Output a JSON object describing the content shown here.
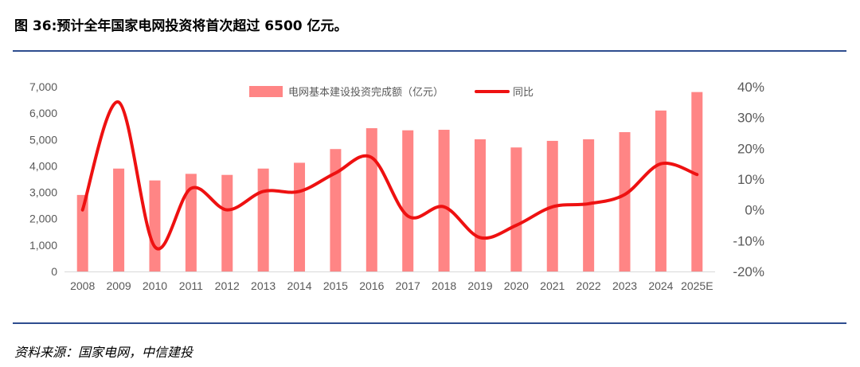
{
  "figure": {
    "title": "图 36:预计全年国家电网投资将首次超过 6500 亿元。",
    "source": "资料来源：国家电网，中信建投"
  },
  "chart_data": {
    "type": "bar",
    "categories": [
      "2008",
      "2009",
      "2010",
      "2011",
      "2012",
      "2013",
      "2014",
      "2015",
      "2016",
      "2017",
      "2018",
      "2019",
      "2020",
      "2021",
      "2022",
      "2023",
      "2024",
      "2025E"
    ],
    "series": [
      {
        "name": "电网基本建设投资完成额（亿元）",
        "type": "bar",
        "axis": "left",
        "color": "#ff8585",
        "values": [
          2900,
          3900,
          3450,
          3700,
          3660,
          3900,
          4120,
          4640,
          5430,
          5350,
          5370,
          5010,
          4700,
          4950,
          5010,
          5280,
          6100,
          6800
        ]
      },
      {
        "name": "同比",
        "type": "line",
        "axis": "right",
        "color": "#ee1111",
        "values": [
          0,
          35,
          -12,
          7,
          0,
          6,
          6,
          12,
          17,
          -2,
          1,
          -9,
          -5,
          1,
          2,
          5,
          15,
          11.5
        ]
      }
    ],
    "y_left": {
      "min": 0,
      "max": 7000,
      "ticks": [
        "0",
        "1,000",
        "2,000",
        "3,000",
        "4,000",
        "5,000",
        "6,000",
        "7,000"
      ]
    },
    "y_right": {
      "min": -20,
      "max": 40,
      "ticks": [
        "-20%",
        "-10%",
        "0%",
        "10%",
        "20%",
        "30%",
        "40%"
      ]
    },
    "grid": false,
    "legend": "top-center"
  }
}
